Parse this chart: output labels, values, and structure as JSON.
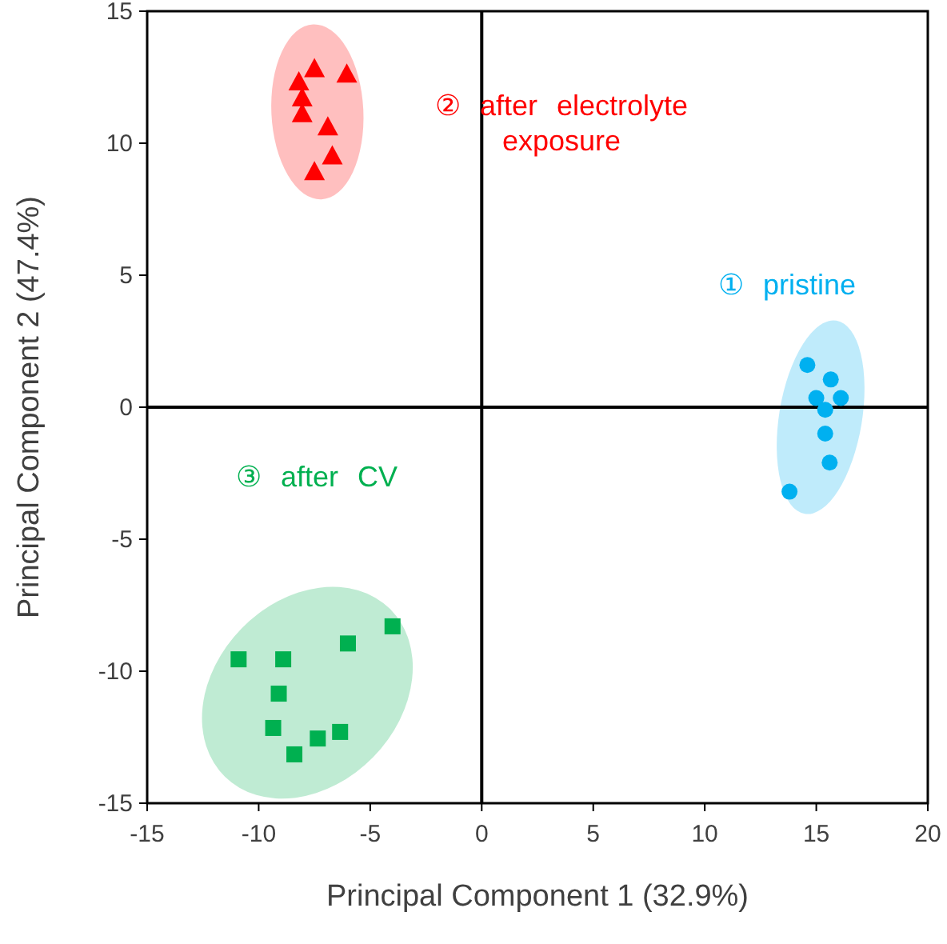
{
  "chart_data": {
    "type": "scatter",
    "xlabel": "Principal Component 1 (32.9%)",
    "ylabel": "Principal Component 2 (47.4%)",
    "xlim": [
      -15,
      20
    ],
    "xticks": [
      -15,
      -10,
      -5,
      0,
      5,
      10,
      15,
      20
    ],
    "ylim": [
      -15,
      15
    ],
    "yticks": [
      -15,
      -10,
      -5,
      0,
      5,
      10,
      15
    ],
    "series": [
      {
        "name": "① pristine",
        "color": "#00b0f0",
        "marker": "circle",
        "x": [
          14.6,
          15.65,
          15.0,
          16.1,
          15.4,
          15.4,
          15.6,
          13.8
        ],
        "values": [
          1.6,
          1.05,
          0.35,
          0.35,
          -0.1,
          -1.0,
          -2.1,
          -3.2
        ]
      },
      {
        "name": "② after electrolyte exposure",
        "color": "#ff0000",
        "marker": "triangle",
        "x": [
          -7.5,
          -6.05,
          -8.2,
          -8.05,
          -8.05,
          -6.9,
          -6.7,
          -7.5
        ],
        "values": [
          12.8,
          12.6,
          12.3,
          11.7,
          11.1,
          10.6,
          9.5,
          8.9
        ]
      },
      {
        "name": "③ after CV",
        "color": "#00b050",
        "marker": "square",
        "x": [
          -10.9,
          -8.9,
          -9.1,
          -6.0,
          -4.0,
          -9.35,
          -6.35,
          -7.35,
          -8.4
        ],
        "values": [
          -9.55,
          -9.55,
          -10.85,
          -8.95,
          -8.3,
          -12.15,
          -12.3,
          -12.55,
          -13.15
        ]
      }
    ]
  }
}
